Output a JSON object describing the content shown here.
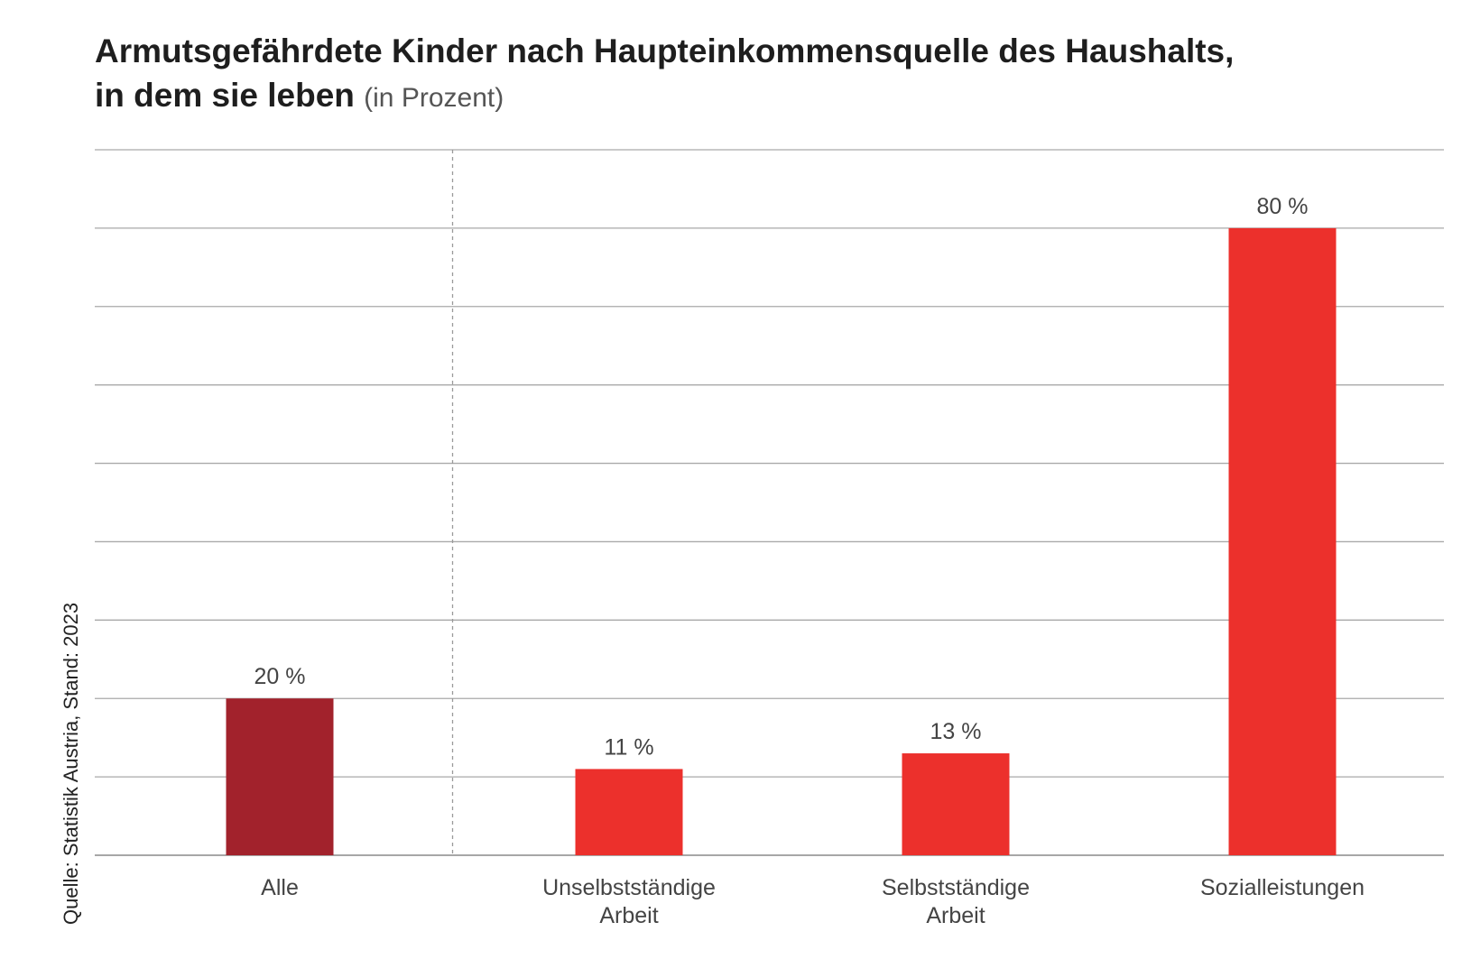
{
  "title": {
    "main_line1": "Armutsgefährdete Kinder nach Haupteinkommensquelle des Haushalts,",
    "main_line2": "in dem sie leben",
    "unit": "(in Prozent)"
  },
  "source": "Quelle: Statistik Austria, Stand: 2023",
  "chart_data": {
    "type": "bar",
    "title": "Armutsgefährdete Kinder nach Haupteinkommensquelle des Haushalts, in dem sie leben (in Prozent)",
    "xlabel": "",
    "ylabel": "",
    "ylim": [
      0,
      90
    ],
    "grid": true,
    "categories": [
      [
        "Alle"
      ],
      [
        "Unselbstständige",
        "Arbeit"
      ],
      [
        "Selbstständige",
        "Arbeit"
      ],
      [
        "Sozialleistungen"
      ]
    ],
    "values": [
      20,
      11,
      13,
      80
    ],
    "value_labels": [
      "20 %",
      "11 %",
      "13 %",
      "80 %"
    ],
    "colors": [
      "#a2222c",
      "#ec302c",
      "#ec302c",
      "#ec302c"
    ],
    "separator_after_category": 0
  }
}
